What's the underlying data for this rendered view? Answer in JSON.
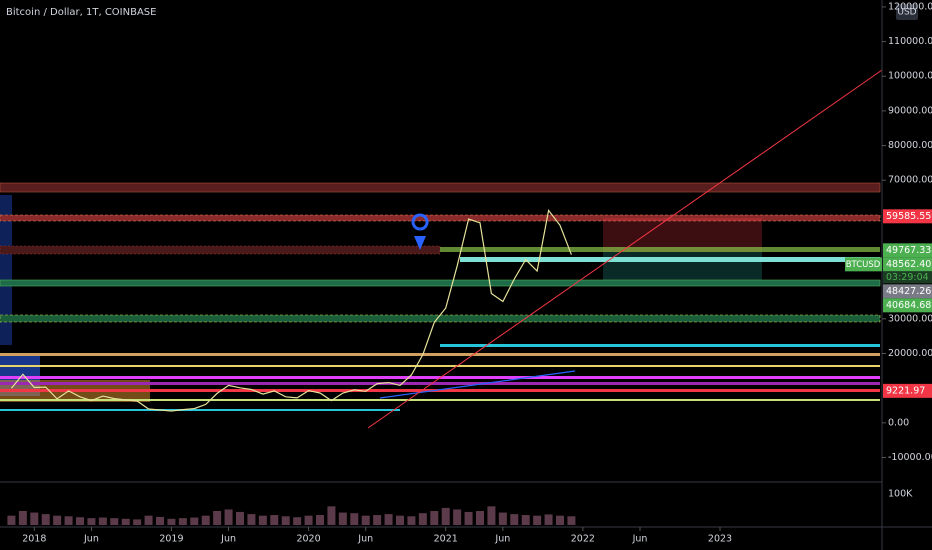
{
  "chart_data": {
    "type": "line",
    "title": "Bitcoin / Dollar, 1T, COINBASE",
    "currency": "USD",
    "color": "#e6e29a",
    "xlim": [
      "2017-10",
      "2024-03"
    ],
    "ylim": [
      -16500,
      122000
    ],
    "yticks": [
      {
        "value": -10000,
        "label": "-10000.00"
      },
      {
        "value": 0,
        "label": "0.00"
      },
      {
        "value": 20000,
        "label": "20000.00"
      },
      {
        "value": 30000,
        "label": "30000.00"
      },
      {
        "value": 70000,
        "label": "70000.00"
      },
      {
        "value": 80000,
        "label": "80000.00"
      },
      {
        "value": 90000,
        "label": "90000.00"
      },
      {
        "value": 100000,
        "label": "100000.00"
      },
      {
        "value": 110000,
        "label": "110000.00"
      },
      {
        "value": 120000,
        "label": "120000.00"
      }
    ],
    "xticks": [
      {
        "value": "2018-01",
        "label": "2018"
      },
      {
        "value": "2018-06",
        "label": "Jun"
      },
      {
        "value": "2019-01",
        "label": "2019"
      },
      {
        "value": "2019-06",
        "label": "Jun"
      },
      {
        "value": "2020-01",
        "label": "2020"
      },
      {
        "value": "2020-06",
        "label": "Jun"
      },
      {
        "value": "2021-01",
        "label": "2021"
      },
      {
        "value": "2021-06",
        "label": "Jun"
      },
      {
        "value": "2022-01",
        "label": "2022"
      },
      {
        "value": "2022-06",
        "label": "Jun"
      },
      {
        "value": "2023-01",
        "label": "2023"
      }
    ],
    "x": [
      "2017-11",
      "2017-12",
      "2018-01",
      "2018-02",
      "2018-03",
      "2018-04",
      "2018-05",
      "2018-06",
      "2018-07",
      "2018-08",
      "2018-09",
      "2018-10",
      "2018-11",
      "2018-12",
      "2019-01",
      "2019-02",
      "2019-03",
      "2019-04",
      "2019-05",
      "2019-06",
      "2019-07",
      "2019-08",
      "2019-09",
      "2019-10",
      "2019-11",
      "2019-12",
      "2020-01",
      "2020-02",
      "2020-03",
      "2020-04",
      "2020-05",
      "2020-06",
      "2020-07",
      "2020-08",
      "2020-09",
      "2020-10",
      "2020-11",
      "2020-12",
      "2021-01",
      "2021-02",
      "2021-03",
      "2021-04",
      "2021-05",
      "2021-06",
      "2021-07",
      "2021-08",
      "2021-09",
      "2021-10",
      "2021-11",
      "2021-12"
    ],
    "values": [
      10000,
      14000,
      10200,
      10300,
      6900,
      9200,
      7500,
      6400,
      7700,
      7000,
      6600,
      6300,
      4000,
      3700,
      3400,
      3800,
      4100,
      5300,
      8500,
      10800,
      10100,
      9600,
      8300,
      9200,
      7500,
      7200,
      9300,
      8600,
      6400,
      8600,
      9500,
      9100,
      11300,
      11600,
      10800,
      13800,
      19700,
      29000,
      33100,
      45200,
      58800,
      57700,
      37300,
      35000,
      41500,
      47100,
      43800,
      61300,
      57000,
      48500
    ],
    "volume": {
      "ylim": [
        0,
        135000
      ],
      "yticks": [
        {
          "value": 100000,
          "label": "100K"
        }
      ],
      "color": "#5b3a4a",
      "values": [
        30000,
        45000,
        40000,
        35000,
        30000,
        28000,
        25000,
        22000,
        24000,
        22000,
        20000,
        18000,
        30000,
        26000,
        20000,
        22000,
        24000,
        30000,
        45000,
        50000,
        42000,
        35000,
        30000,
        32000,
        28000,
        25000,
        30000,
        32000,
        60000,
        40000,
        38000,
        30000,
        32000,
        35000,
        30000,
        28000,
        38000,
        45000,
        55000,
        50000,
        42000,
        45000,
        60000,
        40000,
        35000,
        32000,
        30000,
        34000,
        30000,
        28000
      ]
    },
    "price_labels": [
      {
        "value": 59585.55,
        "label": "59585.55",
        "color": "#f23645"
      },
      {
        "value": 49767.33,
        "label": "49767.33",
        "color": "#4caf50"
      },
      {
        "value": 48562.4,
        "label": "48562.40",
        "color": "#4caf50",
        "symbol": "BTCUSD",
        "countdown": "03:29:04"
      },
      {
        "value": 48427.26,
        "label": "48427.26",
        "color": "#787b86"
      },
      {
        "value": 40684.68,
        "label": "40684.68",
        "color": "#4caf50"
      },
      {
        "value": 9221.97,
        "label": "9221.97",
        "color": "#f23645"
      }
    ]
  }
}
